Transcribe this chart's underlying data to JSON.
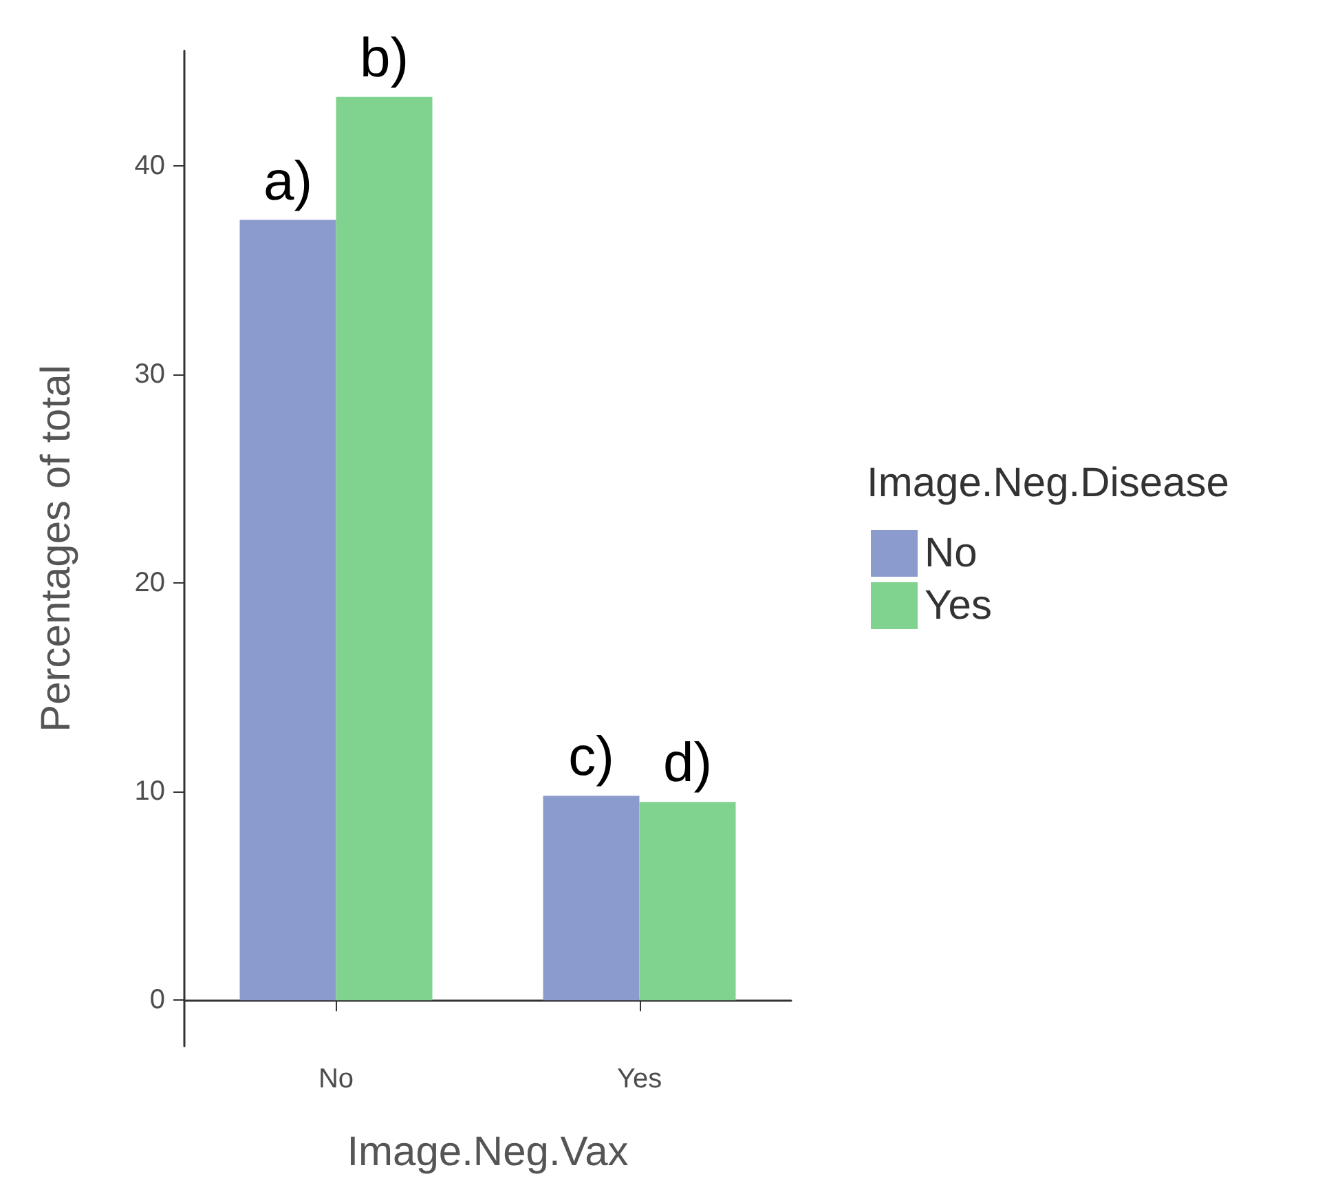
{
  "chart_data": {
    "type": "bar",
    "xlabel": "Image.Neg.Vax",
    "ylabel": "Percentages of total",
    "legend_title": "Image.Neg.Disease",
    "categories": [
      "No",
      "Yes"
    ],
    "series": [
      {
        "name": "No",
        "color": "#8b9bce",
        "values": [
          37.4,
          9.8
        ]
      },
      {
        "name": "Yes",
        "color": "#80d38f",
        "values": [
          43.3,
          9.5
        ]
      }
    ],
    "ylim": [
      -2.2,
      45.5
    ],
    "yticks": [
      0,
      10,
      20,
      30,
      40
    ],
    "grid": false,
    "legend": "right",
    "annotations": [
      {
        "text": "a)",
        "x": "No",
        "y": 37.4
      },
      {
        "text": "b)",
        "x": "No",
        "y": 43.3
      },
      {
        "text": "c)",
        "x": "Yes",
        "y": 9.8
      },
      {
        "text": "d)",
        "x": "Yes",
        "y": 9.5
      }
    ]
  }
}
